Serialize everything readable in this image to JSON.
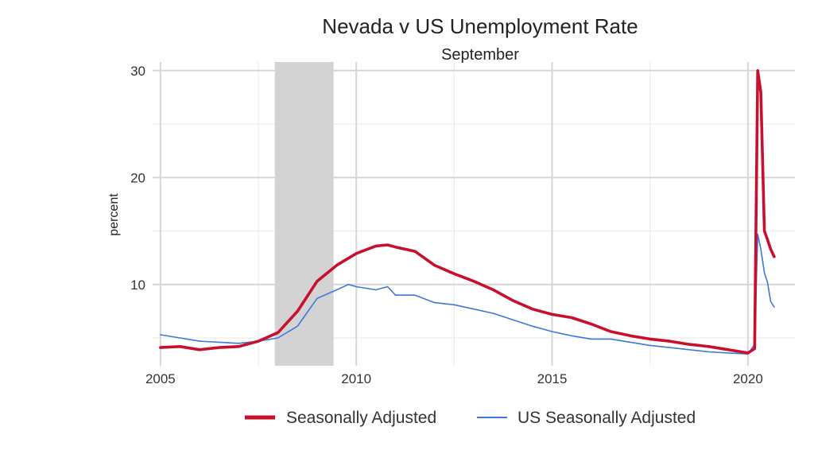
{
  "chart_data": {
    "type": "line",
    "title": "Nevada v US Unemployment Rate",
    "subtitle": "September",
    "xlabel": "",
    "ylabel": "percent",
    "xlim": [
      2004.8,
      2021.2
    ],
    "ylim": [
      2.4,
      30.8
    ],
    "x_ticks": [
      2005,
      2010,
      2015,
      2020
    ],
    "y_ticks": [
      10,
      20,
      30
    ],
    "recession_band": [
      2007.92,
      2009.42
    ],
    "grid": true,
    "legend_position": "bottom",
    "series": [
      {
        "name": "Seasonally Adjusted",
        "color": "#c8102e",
        "x": [
          2005.0,
          2005.5,
          2006.0,
          2006.5,
          2007.0,
          2007.5,
          2008.0,
          2008.5,
          2009.0,
          2009.5,
          2010.0,
          2010.5,
          2010.8,
          2011.0,
          2011.5,
          2012.0,
          2012.5,
          2013.0,
          2013.5,
          2014.0,
          2014.5,
          2015.0,
          2015.5,
          2016.0,
          2016.5,
          2017.0,
          2017.5,
          2018.0,
          2018.5,
          2019.0,
          2019.5,
          2020.0,
          2020.17,
          2020.25,
          2020.33,
          2020.42,
          2020.5,
          2020.58,
          2020.67
        ],
        "y": [
          4.1,
          4.2,
          3.9,
          4.1,
          4.2,
          4.7,
          5.5,
          7.5,
          10.3,
          11.8,
          12.9,
          13.6,
          13.7,
          13.5,
          13.1,
          11.8,
          11.0,
          10.3,
          9.5,
          8.5,
          7.7,
          7.2,
          6.9,
          6.3,
          5.6,
          5.2,
          4.9,
          4.7,
          4.4,
          4.2,
          3.9,
          3.6,
          4.0,
          30.0,
          28.0,
          15.0,
          14.2,
          13.3,
          12.6
        ]
      },
      {
        "name": "US Seasonally Adjusted",
        "color": "#3c78d8",
        "x": [
          2005.0,
          2005.5,
          2006.0,
          2006.5,
          2007.0,
          2007.5,
          2008.0,
          2008.5,
          2009.0,
          2009.5,
          2009.8,
          2010.0,
          2010.5,
          2010.8,
          2011.0,
          2011.5,
          2012.0,
          2012.5,
          2013.0,
          2013.5,
          2014.0,
          2014.5,
          2015.0,
          2015.5,
          2016.0,
          2016.5,
          2017.0,
          2017.5,
          2018.0,
          2018.5,
          2019.0,
          2019.5,
          2020.0,
          2020.17,
          2020.25,
          2020.33,
          2020.42,
          2020.5,
          2020.58,
          2020.67
        ],
        "y": [
          5.3,
          5.0,
          4.7,
          4.6,
          4.5,
          4.7,
          5.0,
          6.1,
          8.7,
          9.5,
          10.0,
          9.8,
          9.5,
          9.8,
          9.0,
          9.0,
          8.3,
          8.1,
          7.7,
          7.3,
          6.7,
          6.1,
          5.6,
          5.2,
          4.9,
          4.9,
          4.6,
          4.3,
          4.1,
          3.9,
          3.7,
          3.6,
          3.5,
          4.4,
          14.7,
          13.3,
          11.1,
          10.2,
          8.4,
          7.9
        ]
      }
    ]
  }
}
